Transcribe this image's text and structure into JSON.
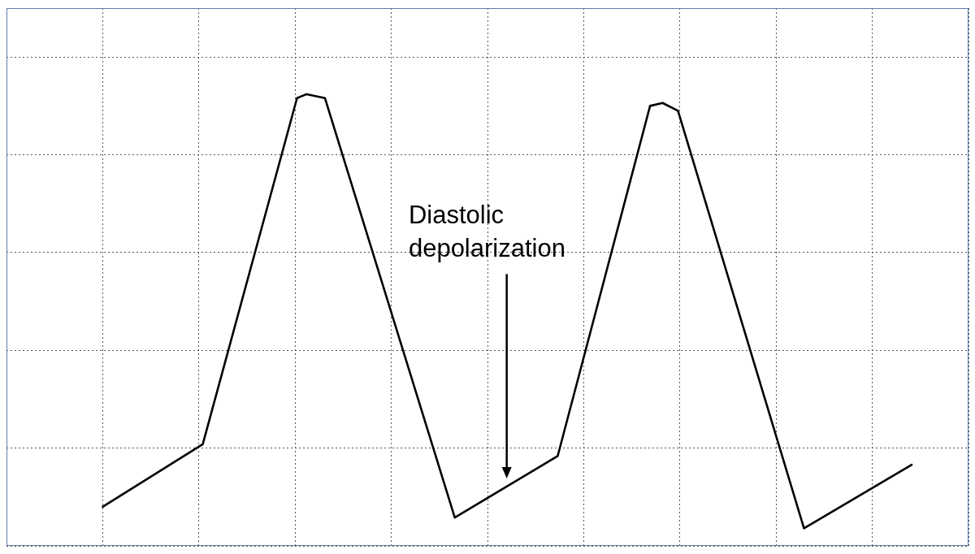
{
  "chart_data": {
    "type": "line",
    "x": [
      1.0,
      2.04,
      3.02,
      3.12,
      3.31,
      4.66,
      5.73,
      6.69,
      6.82,
      6.98,
      8.29,
      9.41
    ],
    "series": [
      {
        "name": null,
        "color": "#000000",
        "marker": "none",
        "line_style": "solid",
        "values": [
          0.4,
          1.04,
          4.58,
          4.62,
          4.58,
          0.29,
          0.92,
          4.5,
          4.53,
          4.45,
          0.18,
          0.83
        ]
      }
    ],
    "xlim": [
      0,
      10
    ],
    "xticks": [
      0,
      1,
      2,
      3,
      4,
      5,
      6,
      7,
      8,
      9,
      10
    ],
    "ylim": [
      0,
      5.5
    ],
    "yticks": [
      0,
      1,
      2,
      3,
      4,
      5
    ],
    "grid": true,
    "tick_labels": false,
    "annotations": [
      "Diastolic depolarization"
    ]
  }
}
